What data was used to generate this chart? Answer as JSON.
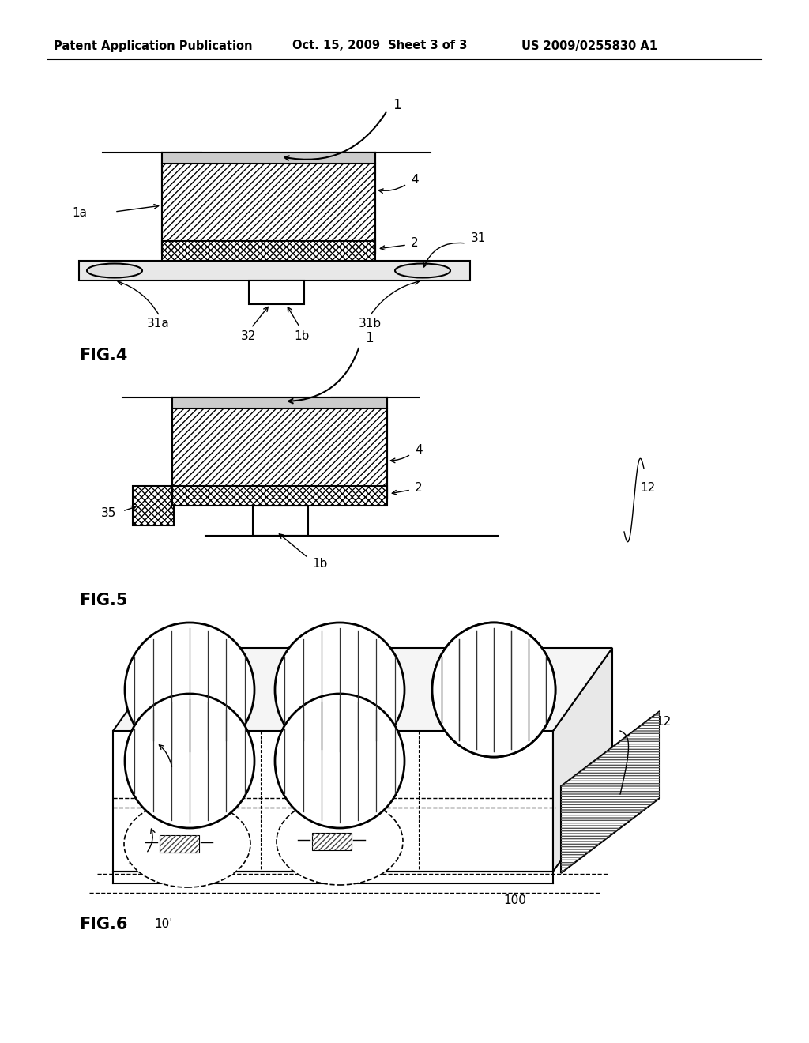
{
  "bg_color": "#ffffff",
  "header_left": "Patent Application Publication",
  "header_mid": "Oct. 15, 2009  Sheet 3 of 3",
  "header_right": "US 2009/0255830 A1",
  "fig4_label": "FIG.4",
  "fig5_label": "FIG.5",
  "fig6_label": "FIG.6",
  "fig6_sublabel": "10'",
  "line_color": "#000000",
  "bg_white": "#ffffff",
  "gray_light": "#f0f0f0",
  "gray_mid": "#e0e0e0"
}
